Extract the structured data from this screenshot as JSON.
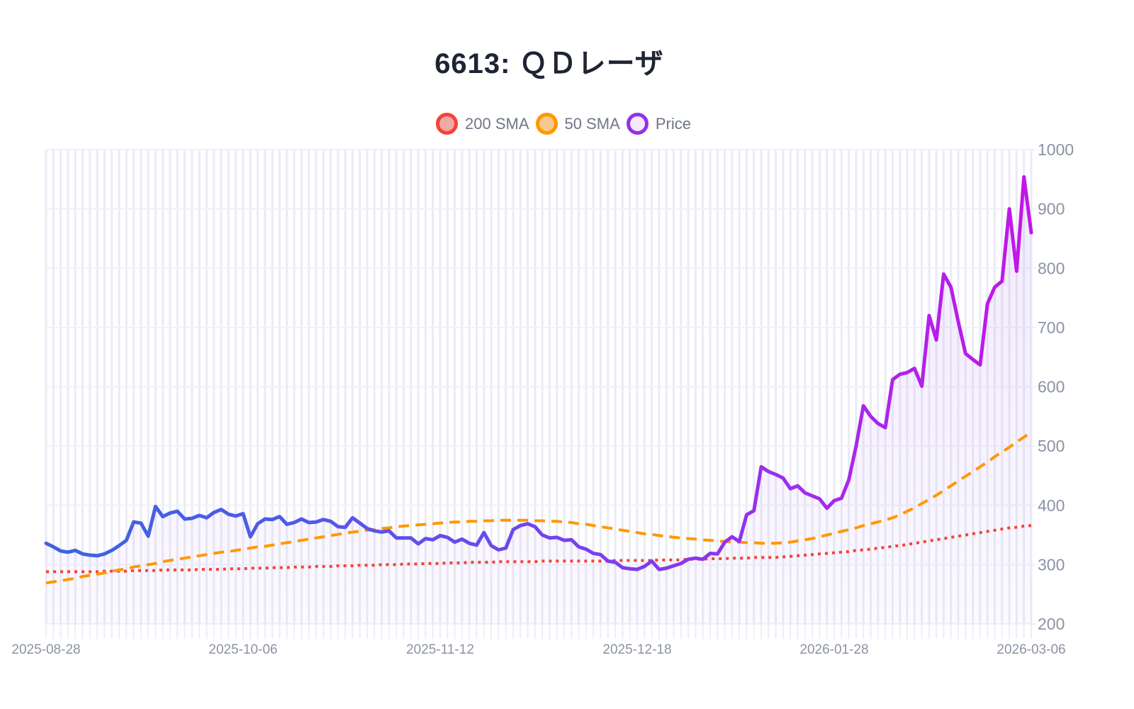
{
  "header": {
    "title": "6613: ＱＤレーザ"
  },
  "legend": {
    "items": [
      {
        "label": "200 SMA",
        "border_color": "#f44336",
        "fill_color": "#f1a9a6"
      },
      {
        "label": "50 SMA",
        "border_color": "#ff9800",
        "fill_color": "#f8c98e"
      },
      {
        "label": "Price",
        "border_color": "#9130ee",
        "fill_color": "#f6e9fc"
      }
    ]
  },
  "style": {
    "page_background": "#ffffff",
    "title_color": "#1e2433",
    "axis_label_color": "#8c92a4",
    "legend_label_color": "#6f7684",
    "stripe_color": "#ebebf6",
    "hgrid_color": "#eef1f7",
    "area_fill_top": "rgba(151,92,238,0.14)",
    "area_fill_bottom": "rgba(151,92,238,0.03)"
  },
  "chart_data": {
    "type": "line",
    "title": "6613: ＱＤレーザ",
    "legend_position": "top",
    "grid": true,
    "x_axis": {
      "unit": "trading days (daily close)",
      "point_count": 136,
      "tick_indices": [
        0,
        27,
        54,
        81,
        108,
        135
      ],
      "tick_labels": [
        "2025-08-28",
        "2025-10-06",
        "2025-11-12",
        "2025-12-18",
        "2026-01-28",
        "2026-03-06"
      ]
    },
    "y_axis": {
      "min": 200,
      "max": 1000,
      "ticks": [
        200,
        300,
        400,
        500,
        600,
        700,
        800,
        900,
        1000
      ]
    },
    "series": [
      {
        "name": "Price",
        "type": "line+area",
        "color_gradient": [
          {
            "offset": 0,
            "color": "#3f63e0"
          },
          {
            "offset": 0.2,
            "color": "#4b5ce8"
          },
          {
            "offset": 0.45,
            "color": "#6a4aec"
          },
          {
            "offset": 0.62,
            "color": "#8439ee"
          },
          {
            "offset": 0.78,
            "color": "#a22bee"
          },
          {
            "offset": 1,
            "color": "#c315e8"
          }
        ],
        "values": [
          336,
          330,
          323,
          321,
          324,
          318,
          316,
          315,
          318,
          324,
          332,
          341,
          372,
          370,
          348,
          398,
          381,
          387,
          390,
          377,
          378,
          383,
          379,
          388,
          393,
          385,
          382,
          386,
          347,
          369,
          377,
          376,
          381,
          368,
          371,
          377,
          371,
          372,
          376,
          373,
          364,
          363,
          379,
          370,
          361,
          357,
          355,
          357,
          345,
          345,
          345,
          335,
          344,
          342,
          349,
          346,
          338,
          343,
          336,
          333,
          354,
          332,
          325,
          328,
          359,
          366,
          369,
          364,
          350,
          345,
          346,
          341,
          342,
          330,
          326,
          319,
          317,
          306,
          304,
          295,
          293,
          292,
          297,
          306,
          292,
          294,
          298,
          302,
          309,
          311,
          309,
          319,
          318,
          338,
          347,
          339,
          384,
          391,
          465,
          457,
          452,
          446,
          428,
          433,
          421,
          416,
          411,
          395,
          408,
          412,
          443,
          500,
          568,
          550,
          538,
          531,
          612,
          621,
          624,
          631,
          601,
          720,
          679,
          790,
          768,
          710,
          656,
          646,
          637,
          740,
          768,
          778,
          900,
          795,
          954,
          860
        ]
      },
      {
        "name": "50 SMA",
        "type": "line",
        "style": "dashed",
        "color": "#ff9800",
        "values": [
          269,
          271,
          273,
          275,
          277,
          280,
          282,
          284,
          286,
          289,
          291,
          293,
          296,
          298,
          300,
          302,
          305,
          307,
          309,
          311,
          313,
          315,
          317,
          319,
          321,
          322,
          324,
          326,
          328,
          330,
          331,
          333,
          335,
          337,
          339,
          341,
          343,
          345,
          347,
          349,
          351,
          353,
          355,
          356,
          358,
          359,
          361,
          362,
          364,
          365,
          366,
          367,
          368,
          369,
          370,
          371,
          372,
          372,
          373,
          373,
          374,
          374,
          375,
          375,
          375,
          375,
          375,
          374,
          374,
          373,
          373,
          372,
          371,
          369,
          368,
          366,
          364,
          362,
          360,
          358,
          356,
          354,
          352,
          351,
          349,
          348,
          346,
          345,
          344,
          343,
          342,
          341,
          340,
          339,
          338,
          338,
          337,
          337,
          336,
          336,
          336,
          337,
          338,
          340,
          342,
          344,
          347,
          350,
          353,
          356,
          359,
          362,
          366,
          369,
          372,
          375,
          379,
          384,
          390,
          396,
          403,
          410,
          417,
          425,
          433,
          441,
          449,
          457,
          465,
          473,
          482,
          490,
          498,
          507,
          515,
          524
        ]
      },
      {
        "name": "200 SMA",
        "type": "line",
        "style": "dotted",
        "color": "#f44336",
        "values": [
          288,
          288,
          288,
          288,
          288,
          288,
          288,
          288,
          289,
          289,
          289,
          289,
          290,
          290,
          290,
          290,
          291,
          291,
          291,
          291,
          291,
          292,
          292,
          292,
          292,
          293,
          293,
          293,
          294,
          294,
          294,
          295,
          295,
          295,
          296,
          296,
          296,
          297,
          297,
          297,
          298,
          298,
          298,
          299,
          299,
          299,
          300,
          300,
          300,
          301,
          301,
          301,
          302,
          302,
          302,
          303,
          303,
          303,
          304,
          304,
          304,
          304,
          305,
          305,
          305,
          305,
          305,
          305,
          306,
          306,
          306,
          306,
          306,
          306,
          306,
          306,
          306,
          306,
          307,
          307,
          307,
          307,
          307,
          307,
          308,
          308,
          308,
          308,
          309,
          309,
          309,
          310,
          310,
          310,
          311,
          311,
          311,
          312,
          312,
          312,
          312,
          313,
          314,
          315,
          316,
          317,
          318,
          319,
          320,
          321,
          322,
          324,
          325,
          326,
          328,
          329,
          331,
          332,
          334,
          336,
          338,
          340,
          342,
          344,
          346,
          348,
          350,
          352,
          354,
          356,
          358,
          360,
          362,
          363,
          365,
          366
        ]
      }
    ]
  }
}
